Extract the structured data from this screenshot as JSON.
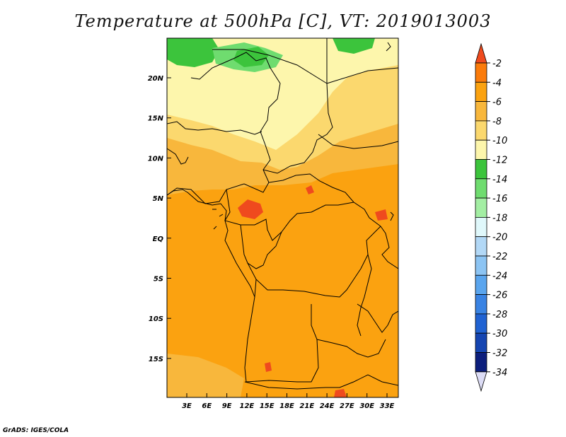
{
  "title": "Temperature at 500hPa [C], VT: 2019013003",
  "credit": "GrADS: IGES/COLA",
  "lat_labels": [
    "20N",
    "15N",
    "10N",
    "5N",
    "EQ",
    "5S",
    "10S",
    "15S"
  ],
  "lon_labels": [
    "3E",
    "6E",
    "9E",
    "12E",
    "15E",
    "18E",
    "21E",
    "24E",
    "27E",
    "30E",
    "33E"
  ],
  "colorbar": {
    "labels": [
      "-2",
      "-4",
      "-6",
      "-8",
      "-10",
      "-12",
      "-14",
      "-16",
      "-18",
      "-20",
      "-22",
      "-24",
      "-26",
      "-28",
      "-30",
      "-32",
      "-34"
    ],
    "colors": [
      "#ef4a1e",
      "#fb7b0a",
      "#fba210",
      "#f8b73c",
      "#fbd86e",
      "#fdf6ac",
      "#3cc43c",
      "#6fdc6f",
      "#a3eea3",
      "#e0f8fb",
      "#b2d8f6",
      "#8cc4f3",
      "#5aa5ee",
      "#3983e3",
      "#2062d2",
      "#1545b1",
      "#0c1e7c",
      "#dcdcf5"
    ]
  }
}
